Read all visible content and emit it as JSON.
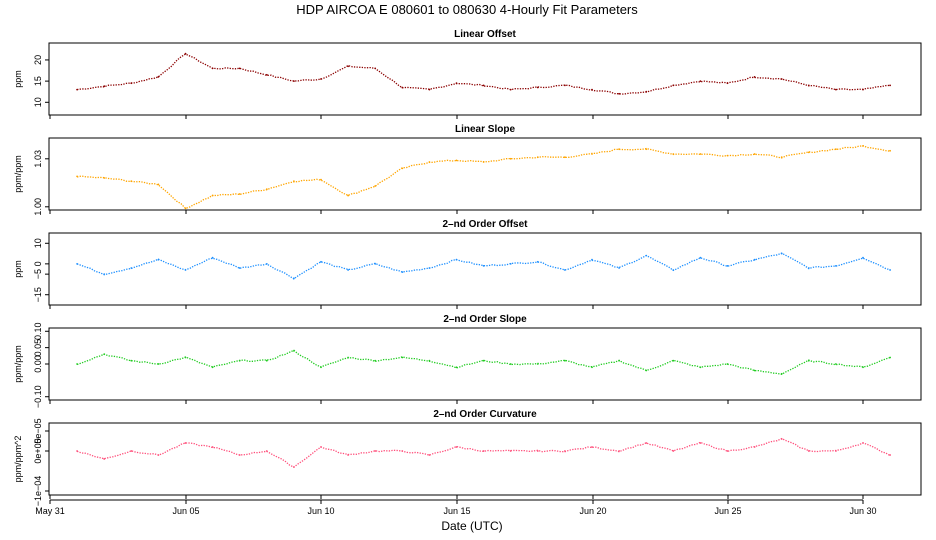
{
  "title": "HDP   AIRCOA E   080601 to 080630   4-Hourly Fit Parameters",
  "xlabel": "Date (UTC)",
  "x_ticks": [
    "May 31",
    "Jun 05",
    "Jun 10",
    "Jun 15",
    "Jun 20",
    "Jun 25",
    "Jun 30"
  ],
  "chart_data": [
    {
      "type": "line",
      "title": "Linear Offset",
      "ylabel": "ppm",
      "color": "#8b0000",
      "ylim": [
        7,
        24
      ],
      "y_ticks": [
        "10",
        "15",
        "20"
      ],
      "x": [
        "Jun 01",
        "Jun 02",
        "Jun 03",
        "Jun 04",
        "Jun 05",
        "Jun 06",
        "Jun 07",
        "Jun 08",
        "Jun 09",
        "Jun 10",
        "Jun 11",
        "Jun 12",
        "Jun 13",
        "Jun 14",
        "Jun 15",
        "Jun 16",
        "Jun 17",
        "Jun 18",
        "Jun 19",
        "Jun 20",
        "Jun 21",
        "Jun 22",
        "Jun 23",
        "Jun 24",
        "Jun 25",
        "Jun 26",
        "Jun 27",
        "Jun 28",
        "Jun 29",
        "Jun 30",
        "Jun 31"
      ],
      "values": [
        13,
        13.8,
        14.5,
        16,
        21.5,
        18,
        18,
        16.5,
        15,
        15.5,
        18.5,
        18,
        13.5,
        13,
        14.5,
        14,
        13,
        13.5,
        14,
        13,
        12,
        12.5,
        14,
        15,
        14.5,
        16,
        15.5,
        14,
        13,
        13,
        14
      ]
    },
    {
      "type": "line",
      "title": "Linear Slope",
      "ylabel": "ppm/ppm",
      "color": "#ffa500",
      "ylim": [
        0.998,
        1.043
      ],
      "y_ticks": [
        "1.00",
        "1.03"
      ],
      "x": [
        "Jun 01",
        "Jun 02",
        "Jun 03",
        "Jun 04",
        "Jun 05",
        "Jun 06",
        "Jun 07",
        "Jun 08",
        "Jun 09",
        "Jun 10",
        "Jun 11",
        "Jun 12",
        "Jun 13",
        "Jun 14",
        "Jun 15",
        "Jun 16",
        "Jun 17",
        "Jun 18",
        "Jun 19",
        "Jun 20",
        "Jun 21",
        "Jun 22",
        "Jun 23",
        "Jun 24",
        "Jun 25",
        "Jun 26",
        "Jun 27",
        "Jun 28",
        "Jun 29",
        "Jun 30",
        "Jun 31"
      ],
      "values": [
        1.019,
        1.018,
        1.016,
        1.014,
        0.999,
        1.007,
        1.008,
        1.011,
        1.016,
        1.017,
        1.007,
        1.013,
        1.024,
        1.028,
        1.029,
        1.028,
        1.03,
        1.031,
        1.031,
        1.033,
        1.036,
        1.036,
        1.033,
        1.033,
        1.032,
        1.033,
        1.031,
        1.034,
        1.036,
        1.038,
        1.035
      ]
    },
    {
      "type": "line",
      "title": "2–nd Order Offset",
      "ylabel": "ppm",
      "color": "#1e90ff",
      "ylim": [
        -20,
        15
      ],
      "y_ticks": [
        "−15",
        "−5",
        "0",
        "10"
      ],
      "tick_values": [
        -15,
        -5,
        0,
        10
      ],
      "x": [
        "Jun 01",
        "Jun 02",
        "Jun 03",
        "Jun 04",
        "Jun 05",
        "Jun 06",
        "Jun 07",
        "Jun 08",
        "Jun 09",
        "Jun 10",
        "Jun 11",
        "Jun 12",
        "Jun 13",
        "Jun 14",
        "Jun 15",
        "Jun 16",
        "Jun 17",
        "Jun 18",
        "Jun 19",
        "Jun 20",
        "Jun 21",
        "Jun 22",
        "Jun 23",
        "Jun 24",
        "Jun 25",
        "Jun 26",
        "Jun 27",
        "Jun 28",
        "Jun 29",
        "Jun 30",
        "Jun 31"
      ],
      "values": [
        0,
        -5,
        -2,
        2,
        -3,
        3,
        -2,
        0,
        -7,
        1,
        -3,
        0,
        -4,
        -2,
        2,
        -1,
        0,
        1,
        -3,
        2,
        -2,
        4,
        -3,
        3,
        -1,
        2,
        5,
        -2,
        -1,
        3,
        -3
      ]
    },
    {
      "type": "line",
      "title": "2–nd Order Slope",
      "ylabel": "ppm/ppm",
      "color": "#22cc22",
      "ylim": [
        -0.11,
        0.11
      ],
      "y_ticks": [
        "−0.10",
        "0.00",
        "0.05",
        "0.10"
      ],
      "tick_values": [
        -0.1,
        0,
        0.05,
        0.1
      ],
      "x": [
        "Jun 01",
        "Jun 02",
        "Jun 03",
        "Jun 04",
        "Jun 05",
        "Jun 06",
        "Jun 07",
        "Jun 08",
        "Jun 09",
        "Jun 10",
        "Jun 11",
        "Jun 12",
        "Jun 13",
        "Jun 14",
        "Jun 15",
        "Jun 16",
        "Jun 17",
        "Jun 18",
        "Jun 19",
        "Jun 20",
        "Jun 21",
        "Jun 22",
        "Jun 23",
        "Jun 24",
        "Jun 25",
        "Jun 26",
        "Jun 27",
        "Jun 28",
        "Jun 29",
        "Jun 30",
        "Jun 31"
      ],
      "values": [
        0,
        0.03,
        0.01,
        0,
        0.02,
        -0.01,
        0.01,
        0.01,
        0.04,
        -0.01,
        0.02,
        0.01,
        0.02,
        0.01,
        -0.01,
        0.01,
        0,
        0,
        0.01,
        -0.01,
        0.01,
        -0.02,
        0.01,
        -0.01,
        0,
        -0.02,
        -0.03,
        0.01,
        0,
        -0.01,
        0.02
      ]
    },
    {
      "type": "line",
      "title": "2–nd Order Curvature",
      "ylabel": "ppm/ppm^2",
      "color": "#ff4f7b",
      "ylim": [
        -0.00011,
        7e-05
      ],
      "y_ticks": [
        "−1e−04",
        "0e+00",
        "5e−05"
      ],
      "tick_values": [
        -0.0001,
        0,
        5e-05
      ],
      "x": [
        "Jun 01",
        "Jun 02",
        "Jun 03",
        "Jun 04",
        "Jun 05",
        "Jun 06",
        "Jun 07",
        "Jun 08",
        "Jun 09",
        "Jun 10",
        "Jun 11",
        "Jun 12",
        "Jun 13",
        "Jun 14",
        "Jun 15",
        "Jun 16",
        "Jun 17",
        "Jun 18",
        "Jun 19",
        "Jun 20",
        "Jun 21",
        "Jun 22",
        "Jun 23",
        "Jun 24",
        "Jun 25",
        "Jun 26",
        "Jun 27",
        "Jun 28",
        "Jun 29",
        "Jun 30",
        "Jun 31"
      ],
      "values": [
        0,
        -2e-05,
        0,
        -1e-05,
        2e-05,
        1e-05,
        -1e-05,
        0,
        -4e-05,
        1e-05,
        -1e-05,
        0,
        0,
        -1e-05,
        1e-05,
        0,
        0,
        0,
        0,
        1e-05,
        0,
        2e-05,
        0,
        2e-05,
        0,
        1e-05,
        3e-05,
        0,
        0,
        2e-05,
        -1e-05
      ]
    }
  ]
}
